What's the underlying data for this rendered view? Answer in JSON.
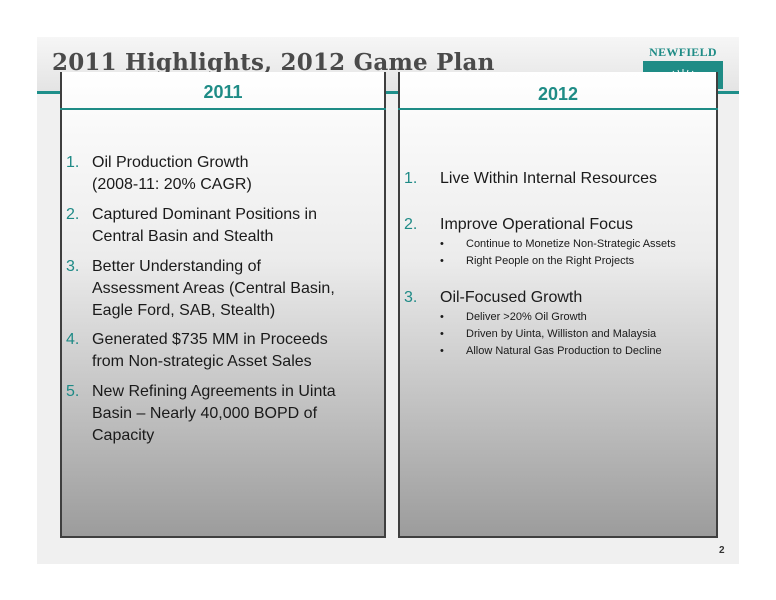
{
  "slide": {
    "title": "2011 Highlights, 2012 Game Plan",
    "logo_text": "NEWFIELD",
    "page_number": "2"
  },
  "left_panel": {
    "heading": "2011",
    "items": [
      {
        "num": "1.",
        "lines": [
          "Oil Production Growth",
          "(2008-11: 20% CAGR)"
        ]
      },
      {
        "num": "2.",
        "lines": [
          "Captured Dominant Positions in",
          "Central Basin and Stealth"
        ]
      },
      {
        "num": "3.",
        "lines": [
          "Better Understanding of",
          "Assessment Areas (Central Basin,",
          "Eagle Ford, SAB, Stealth)"
        ]
      },
      {
        "num": "4.",
        "lines": [
          "Generated $735 MM in Proceeds",
          "from Non-strategic Asset Sales"
        ]
      },
      {
        "num": "5.",
        "lines": [
          "New Refining Agreements in Uinta",
          "Basin – Nearly 40,000 BOPD of",
          "Capacity"
        ]
      }
    ]
  },
  "right_panel": {
    "heading": "2012",
    "items": [
      {
        "num": "1.",
        "text": "Live Within Internal Resources",
        "bullets": []
      },
      {
        "num": "2.",
        "text": "Improve Operational Focus",
        "bullets": [
          "Continue to Monetize Non-Strategic Assets",
          "Right People on the Right Projects"
        ]
      },
      {
        "num": "3.",
        "text": "Oil-Focused Growth",
        "bullets": [
          "Deliver >20% Oil Growth",
          "Driven by Uinta, Williston and Malaysia",
          "Allow Natural Gas Production to Decline"
        ]
      }
    ]
  }
}
